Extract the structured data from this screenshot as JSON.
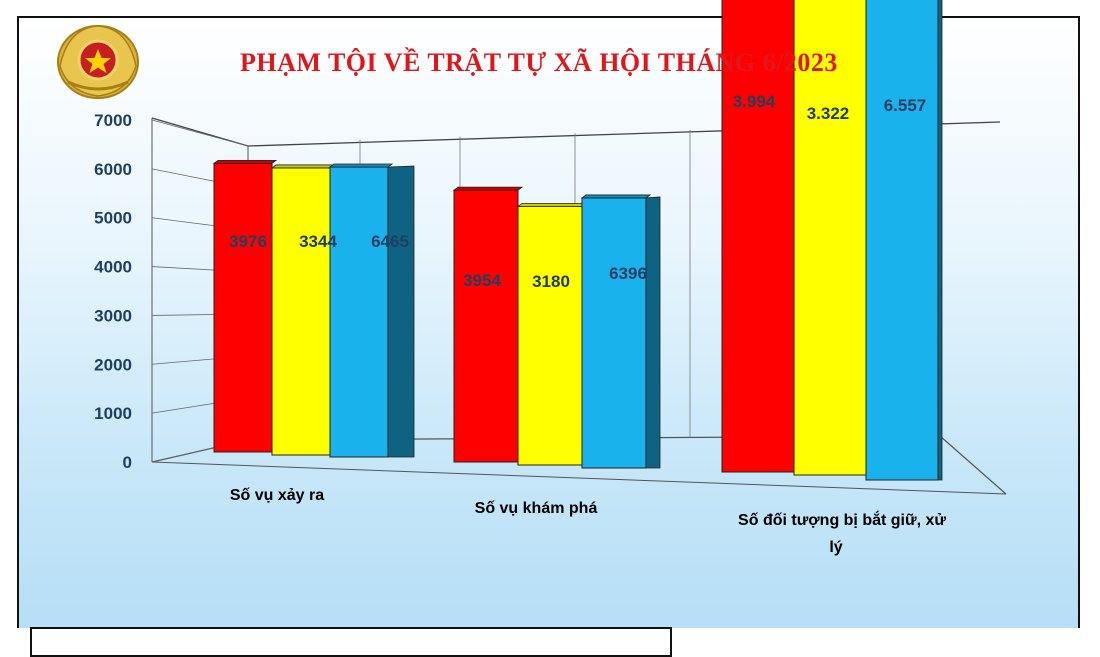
{
  "chart_data": {
    "type": "bar",
    "title": "PHẠM TỘI VỀ TRẬT  TỰ XÃ HỘI THÁNG 6/2023",
    "categories": [
      "Số vụ xảy ra",
      "Số vụ khám phá",
      "Số đối tượng bị bắt giữ, xử lý"
    ],
    "series": [
      {
        "values": [
          3976,
          3344,
          6465
        ],
        "labels": [
          "3976",
          "3344",
          "6465"
        ],
        "color": "#ff0000"
      },
      {
        "values": [
          3954,
          3180,
          6396
        ],
        "labels": [
          "3954",
          "3180",
          "6396"
        ],
        "color": "#ffff00"
      },
      {
        "values": [
          3994,
          3322,
          6557
        ],
        "labels": [
          "3.994",
          "3.322",
          "6.557"
        ],
        "color": "#1ab2ec"
      }
    ],
    "ylim": [
      0,
      7000
    ],
    "yticks": [
      0,
      1000,
      2000,
      3000,
      4000,
      5000,
      6000,
      7000
    ],
    "grid": true,
    "style": "3d-perspective"
  },
  "emblem": "police-emblem-icon"
}
